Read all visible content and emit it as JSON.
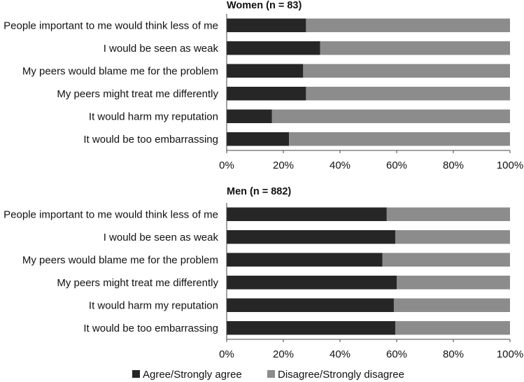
{
  "chart_data": [
    {
      "type": "bar",
      "orientation": "horizontal",
      "stacked": true,
      "title": "Women (n = 83)",
      "categories": [
        "People important to me would think less of me",
        "I would be seen as weak",
        "My peers would blame me for the problem",
        "My peers might treat me differently",
        "It would harm my reputation",
        "It would be too embarrassing"
      ],
      "series": [
        {
          "name": "Agree/Strongly agree",
          "values": [
            28,
            33,
            27,
            28,
            16,
            22
          ]
        },
        {
          "name": "Disagree/Strongly disagree",
          "values": [
            72,
            67,
            73,
            72,
            84,
            78
          ]
        }
      ],
      "xlim": [
        0,
        100
      ],
      "xticks": [
        "0%",
        "20%",
        "40%",
        "60%",
        "80%",
        "100%"
      ],
      "grid": false
    },
    {
      "type": "bar",
      "orientation": "horizontal",
      "stacked": true,
      "title": "Men (n = 882)",
      "categories": [
        "People important to me would think less of me",
        "I would be seen as weak",
        "My peers would blame me for the problem",
        "My peers might treat me differently",
        "It would harm my reputation",
        "It would be too embarrassing"
      ],
      "series": [
        {
          "name": "Agree/Strongly agree",
          "values": [
            56.5,
            59.5,
            55,
            60,
            59,
            59.5
          ]
        },
        {
          "name": "Disagree/Strongly disagree",
          "values": [
            43.5,
            40.5,
            45,
            40,
            41,
            40.5
          ]
        }
      ],
      "xlim": [
        0,
        100
      ],
      "xticks": [
        "0%",
        "20%",
        "40%",
        "60%",
        "80%",
        "100%"
      ],
      "grid": false
    }
  ],
  "legend": {
    "placement": "bottom",
    "items": [
      {
        "label": "Agree/Strongly agree",
        "color": "#262626"
      },
      {
        "label": "Disagree/Strongly disagree",
        "color": "#8c8c8c"
      }
    ]
  },
  "colors": {
    "agree": "#262626",
    "disagree": "#8c8c8c"
  }
}
